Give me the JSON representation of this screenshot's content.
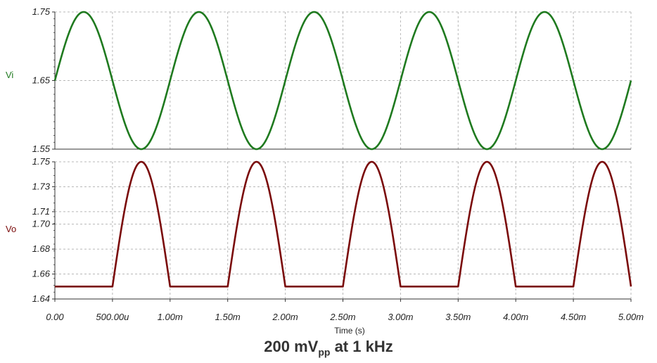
{
  "caption": {
    "main": "200 mV",
    "sub": "pp",
    "rest": " at 1 kHz"
  },
  "colors": {
    "vi": "#1f7a1f",
    "vo": "#7a0a0a",
    "grid": "#b8b8b8",
    "axis": "#333333"
  },
  "chart_data": [
    {
      "type": "line",
      "ylabel": "Vi",
      "ylim": [
        1.55,
        1.75
      ],
      "yticks": [
        "1.55",
        "1.65",
        "1.75"
      ],
      "yticks_values": [
        1.55,
        1.65,
        1.75
      ],
      "xlim": [
        0,
        0.005
      ],
      "grid": true,
      "series": [
        {
          "color": "#1f7a1f",
          "waveform": {
            "kind": "sine",
            "offset": 1.65,
            "amplitude": 0.1,
            "frequency_hz": 1000
          }
        }
      ]
    },
    {
      "type": "line",
      "ylabel": "Vo",
      "xlabel": "Time (s)",
      "ylim": [
        1.64,
        1.75
      ],
      "yticks": [
        "1.64",
        "1.66",
        "1.68",
        "1.70",
        "1.71",
        "1.73",
        "1.75"
      ],
      "yticks_values": [
        1.64,
        1.66,
        1.68,
        1.7,
        1.71,
        1.73,
        1.75
      ],
      "xlim": [
        0,
        0.005
      ],
      "xticks": [
        "0.00",
        "500.00u",
        "1.00m",
        "1.50m",
        "2.00m",
        "2.50m",
        "3.00m",
        "3.50m",
        "4.00m",
        "4.50m",
        "5.00m"
      ],
      "xticks_values": [
        0,
        0.0005,
        0.001,
        0.0015,
        0.002,
        0.0025,
        0.003,
        0.0035,
        0.004,
        0.0045,
        0.005
      ],
      "grid": true,
      "series": [
        {
          "color": "#7a0a0a",
          "waveform": {
            "kind": "half-wave-rectified sine",
            "baseline": 1.65,
            "peak": 1.75,
            "frequency_hz": 1000
          }
        }
      ]
    }
  ]
}
